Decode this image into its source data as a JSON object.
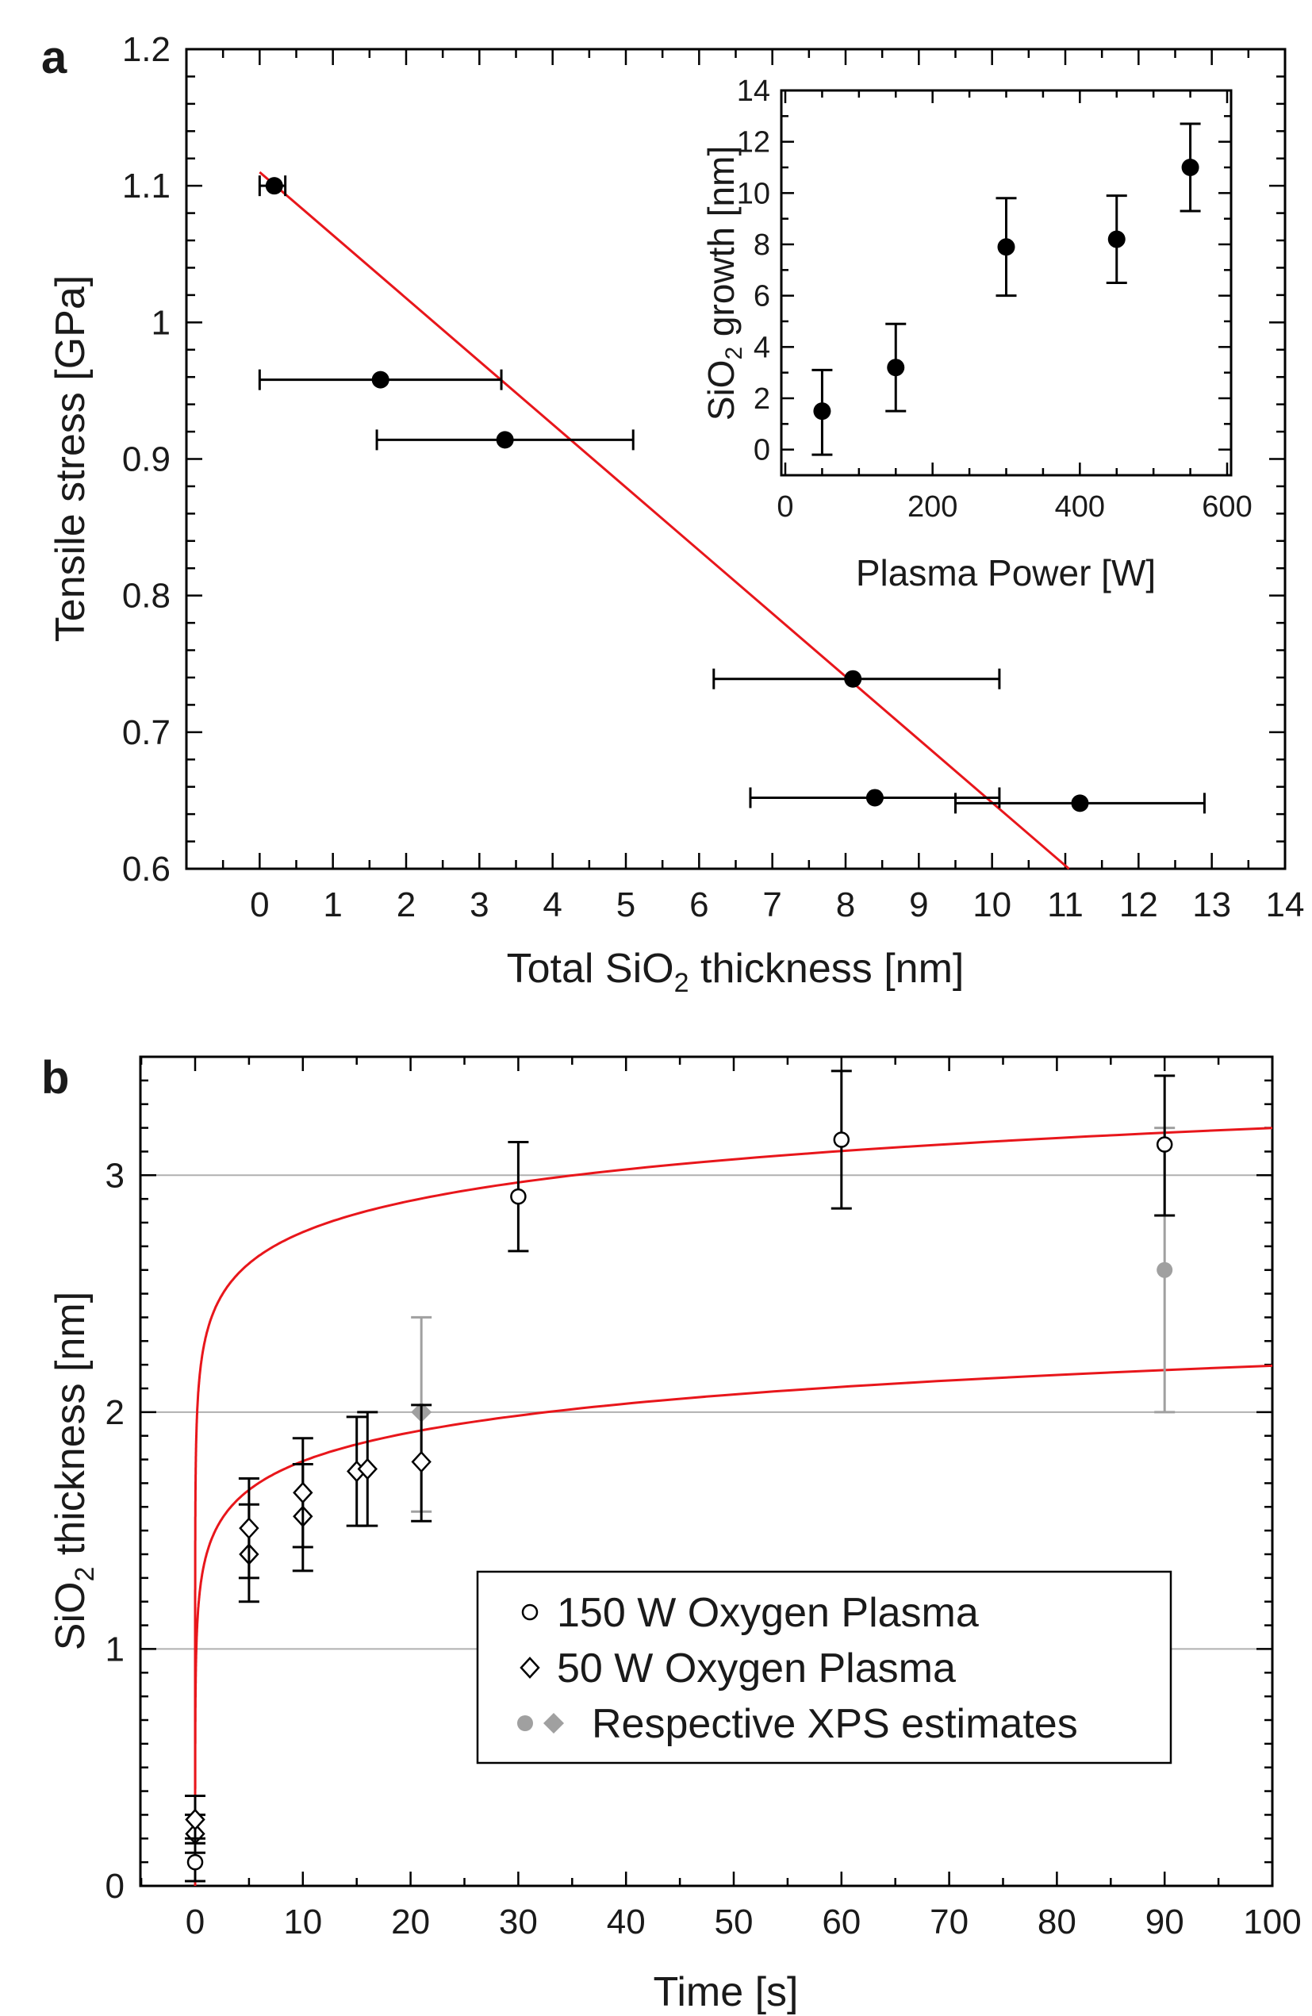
{
  "figure": {
    "panel_a_label": "a",
    "panel_b_label": "b"
  },
  "colors": {
    "fit": "#e8161b",
    "data": "#000000",
    "xps": "#a0a0a0",
    "grid": "#b0b0b0"
  },
  "chart_data": [
    {
      "id": "a",
      "type": "scatter",
      "title": "",
      "xlabel_parts": [
        "Total SiO",
        "2",
        " thickness [nm]"
      ],
      "ylabel": "Tensile stress [GPa]",
      "xlim": [
        -1,
        14
      ],
      "ylim": [
        0.6,
        1.2
      ],
      "xticks": [
        0,
        1,
        2,
        3,
        4,
        5,
        6,
        7,
        8,
        9,
        10,
        11,
        12,
        13,
        14
      ],
      "yticks": [
        0.6,
        0.7,
        0.8,
        0.9,
        1,
        1.1,
        1.2
      ],
      "ytick_labels": [
        "0.6",
        "0.7",
        "0.8",
        "0.9",
        "1",
        "1.1",
        "1.2"
      ],
      "grid": false,
      "points": [
        {
          "x": 0.2,
          "y": 1.1,
          "xerr_low": 0.0,
          "xerr_high": 0.35
        },
        {
          "x": 1.65,
          "y": 0.958,
          "xerr_low": 0.0,
          "xerr_high": 3.3
        },
        {
          "x": 3.35,
          "y": 0.914,
          "xerr_low": 1.6,
          "xerr_high": 5.1
        },
        {
          "x": 8.1,
          "y": 0.739,
          "xerr_low": 6.2,
          "xerr_high": 10.1
        },
        {
          "x": 8.4,
          "y": 0.652,
          "xerr_low": 6.7,
          "xerr_high": 10.1
        },
        {
          "x": 11.2,
          "y": 0.648,
          "xerr_low": 9.5,
          "xerr_high": 12.9
        }
      ],
      "fit_line": {
        "x": [
          0,
          11.05
        ],
        "y": [
          1.11,
          0.6
        ]
      }
    },
    {
      "id": "a-inset",
      "type": "scatter",
      "xlabel": "Plasma Power [W]",
      "ylabel_parts": [
        "SiO",
        "2",
        " growth [nm]"
      ],
      "xlim": [
        0,
        600
      ],
      "ylim": [
        -1,
        14
      ],
      "xticks": [
        0,
        200,
        400,
        600
      ],
      "yticks": [
        0,
        2,
        4,
        6,
        8,
        10,
        12,
        14
      ],
      "points": [
        {
          "x": 50,
          "y": 1.5,
          "yerr_low": -0.2,
          "yerr_high": 3.1
        },
        {
          "x": 150,
          "y": 3.2,
          "yerr_low": 1.5,
          "yerr_high": 4.9
        },
        {
          "x": 300,
          "y": 7.9,
          "yerr_low": 6.0,
          "yerr_high": 9.8
        },
        {
          "x": 450,
          "y": 8.2,
          "yerr_low": 6.5,
          "yerr_high": 9.9
        },
        {
          "x": 550,
          "y": 11.0,
          "yerr_low": 9.3,
          "yerr_high": 12.7
        }
      ]
    },
    {
      "id": "b",
      "type": "scatter",
      "xlabel": "Time [s]",
      "ylabel_parts": [
        "SiO",
        "2",
        " thickness [nm]"
      ],
      "xlim": [
        -5,
        100
      ],
      "ylim": [
        0,
        3.5
      ],
      "xticks": [
        0,
        10,
        20,
        30,
        40,
        50,
        60,
        70,
        80,
        90,
        100
      ],
      "yticks": [
        0,
        1,
        2,
        3
      ],
      "grid": "horizontal",
      "series": [
        {
          "name": "150 W Oxygen Plasma",
          "marker": "circle-open",
          "points": [
            {
              "x": 0,
              "y": 0.1,
              "yerr_low": 0.02,
              "yerr_high": 0.2
            },
            {
              "x": 30,
              "y": 2.91,
              "yerr_low": 2.68,
              "yerr_high": 3.14
            },
            {
              "x": 60,
              "y": 3.15,
              "yerr_low": 2.86,
              "yerr_high": 3.44
            },
            {
              "x": 90,
              "y": 3.13,
              "yerr_low": 2.83,
              "yerr_high": 3.42
            }
          ]
        },
        {
          "name": "50 W Oxygen Plasma",
          "marker": "diamond-open",
          "points": [
            {
              "x": 0,
              "y": 0.22,
              "yerr_low": 0.14,
              "yerr_high": 0.3
            },
            {
              "x": 0,
              "y": 0.28,
              "yerr_low": 0.18,
              "yerr_high": 0.38
            },
            {
              "x": 5,
              "y": 1.4,
              "yerr_low": 1.2,
              "yerr_high": 1.61
            },
            {
              "x": 5,
              "y": 1.51,
              "yerr_low": 1.3,
              "yerr_high": 1.72
            },
            {
              "x": 10,
              "y": 1.56,
              "yerr_low": 1.33,
              "yerr_high": 1.78
            },
            {
              "x": 10,
              "y": 1.66,
              "yerr_low": 1.43,
              "yerr_high": 1.89
            },
            {
              "x": 15,
              "y": 1.75,
              "yerr_low": 1.52,
              "yerr_high": 1.98
            },
            {
              "x": 16,
              "y": 1.76,
              "yerr_low": 1.52,
              "yerr_high": 2.0
            },
            {
              "x": 21,
              "y": 1.79,
              "yerr_low": 1.54,
              "yerr_high": 2.03
            }
          ]
        },
        {
          "name": "Respective XPS estimates",
          "marker": "filled-gray",
          "points": [
            {
              "x": 21,
              "y": 2.0,
              "yerr_low": 1.58,
              "yerr_high": 2.4,
              "marker": "diamond"
            },
            {
              "x": 90,
              "y": 2.6,
              "yerr_low": 2.0,
              "yerr_high": 3.2,
              "marker": "circle"
            }
          ]
        }
      ],
      "fit_curves": [
        {
          "label": "150 W",
          "form": "a + b*ln(t)",
          "a": 2.32,
          "b": 0.191
        },
        {
          "label": "50 W",
          "form": "a + b*ln(t)",
          "a": 1.39,
          "b": 0.175
        }
      ],
      "legend": {
        "position": "center-right",
        "entries": [
          "150 W Oxygen Plasma",
          "50 W Oxygen Plasma",
          "Respective XPS estimates"
        ]
      }
    }
  ]
}
